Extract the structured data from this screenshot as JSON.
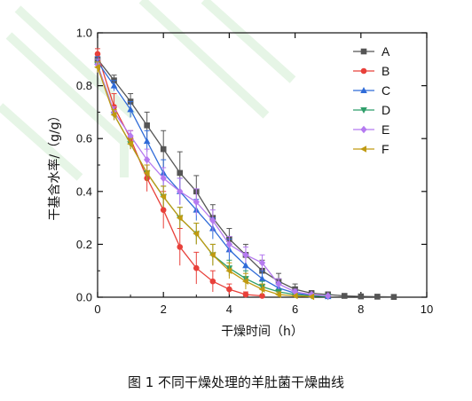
{
  "caption": "图 1  不同干燥处理的羊肚菌干燥曲线",
  "chart_data": {
    "type": "line",
    "xlabel": "干燥时间（h）",
    "ylabel": "干基含水率/（g/g）",
    "xlim": [
      0,
      10
    ],
    "ylim": [
      0,
      1.0
    ],
    "x_ticks": [
      "0",
      "2",
      "4",
      "6",
      "8",
      "10"
    ],
    "y_ticks": [
      "0.0",
      "0.2",
      "0.4",
      "0.6",
      "0.8",
      "1.0"
    ],
    "grid": false,
    "legend_position": "top-right",
    "series": [
      {
        "name": "A",
        "color": "#555555",
        "marker": "square",
        "x": [
          0,
          0.5,
          1,
          1.5,
          2,
          2.5,
          3,
          3.5,
          4,
          4.5,
          5,
          5.5,
          6,
          6.5,
          7,
          7.5,
          8,
          8.5,
          9
        ],
        "y": [
          0.9,
          0.82,
          0.74,
          0.65,
          0.56,
          0.47,
          0.4,
          0.3,
          0.22,
          0.16,
          0.1,
          0.06,
          0.03,
          0.015,
          0.01,
          0.005,
          0.003,
          0.002,
          0.001
        ],
        "err": [
          0.02,
          0.02,
          0.03,
          0.05,
          0.07,
          0.08,
          0.06,
          0.05,
          0.04,
          0.04,
          0.04,
          0.03,
          0.02,
          0.01,
          0.01,
          0,
          0,
          0,
          0
        ]
      },
      {
        "name": "B",
        "color": "#e8403a",
        "marker": "circle",
        "x": [
          0,
          0.5,
          1,
          1.5,
          2,
          2.5,
          3,
          3.5,
          4,
          4.5,
          5
        ],
        "y": [
          0.92,
          0.72,
          0.6,
          0.45,
          0.33,
          0.19,
          0.11,
          0.06,
          0.03,
          0.01,
          0.005
        ],
        "err": [
          0.02,
          0.05,
          0.03,
          0.05,
          0.07,
          0.07,
          0.06,
          0.04,
          0.02,
          0.01,
          0
        ]
      },
      {
        "name": "C",
        "color": "#2f6bd8",
        "marker": "triangle-up",
        "x": [
          0,
          0.5,
          1,
          1.5,
          2,
          2.5,
          3,
          3.5,
          4,
          4.5,
          5,
          5.5,
          6,
          6.5,
          7
        ],
        "y": [
          0.89,
          0.8,
          0.71,
          0.59,
          0.47,
          0.4,
          0.33,
          0.26,
          0.18,
          0.12,
          0.07,
          0.035,
          0.015,
          0.008,
          0.003
        ],
        "err": [
          0.02,
          0.02,
          0.03,
          0.04,
          0.05,
          0.05,
          0.04,
          0.04,
          0.04,
          0.04,
          0.03,
          0.02,
          0.01,
          0.005,
          0
        ]
      },
      {
        "name": "D",
        "color": "#2f9e6a",
        "marker": "triangle-down",
        "x": [
          0,
          0.5,
          1,
          1.5,
          2,
          2.5,
          3,
          3.5,
          4,
          4.5,
          5,
          5.5,
          6,
          6.5,
          7
        ],
        "y": [
          0.88,
          0.69,
          0.58,
          0.47,
          0.38,
          0.3,
          0.24,
          0.16,
          0.11,
          0.07,
          0.04,
          0.02,
          0.01,
          0.005,
          0.002
        ],
        "err": [
          0.02,
          0.02,
          0.02,
          0.03,
          0.04,
          0.04,
          0.04,
          0.04,
          0.03,
          0.03,
          0.02,
          0.01,
          0.005,
          0,
          0
        ]
      },
      {
        "name": "E",
        "color": "#b57af0",
        "marker": "diamond",
        "x": [
          0,
          0.5,
          1,
          1.5,
          2,
          2.5,
          3,
          3.5,
          4,
          4.5,
          5,
          5.5,
          6,
          6.5,
          7
        ],
        "y": [
          0.88,
          0.7,
          0.61,
          0.52,
          0.45,
          0.4,
          0.36,
          0.29,
          0.2,
          0.16,
          0.13,
          0.05,
          0.02,
          0.01,
          0.005
        ],
        "err": [
          0.02,
          0.02,
          0.02,
          0.04,
          0.04,
          0.05,
          0.05,
          0.04,
          0.03,
          0.03,
          0.03,
          0.02,
          0.01,
          0.005,
          0
        ]
      },
      {
        "name": "F",
        "color": "#c09a10",
        "marker": "triangle-left",
        "x": [
          0,
          0.5,
          1,
          1.5,
          2,
          2.5,
          3,
          3.5,
          4,
          4.5,
          5,
          5.5,
          6,
          6.5
        ],
        "y": [
          0.87,
          0.69,
          0.58,
          0.47,
          0.38,
          0.3,
          0.24,
          0.16,
          0.1,
          0.06,
          0.03,
          0.01,
          0.005,
          0.002
        ],
        "err": [
          0.02,
          0.02,
          0.02,
          0.03,
          0.04,
          0.04,
          0.04,
          0.04,
          0.03,
          0.03,
          0.02,
          0.01,
          0,
          0
        ]
      }
    ]
  }
}
